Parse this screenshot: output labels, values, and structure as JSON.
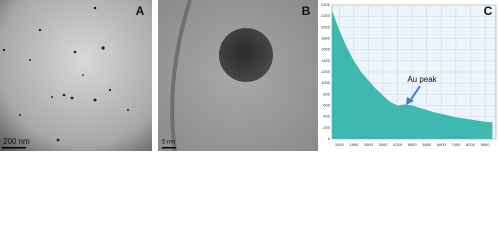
{
  "panels": {
    "a": {
      "label": "A",
      "scale_bar": "200 nm"
    },
    "b": {
      "label": "B",
      "scale_bar": "5 nm"
    }
  },
  "chart_data": {
    "type": "area",
    "label": "C",
    "annotation": "Au peak",
    "color": "#3fb8b0",
    "x": [
      600,
      1000,
      1400,
      1800,
      2200,
      2600,
      3000,
      3400,
      3800,
      4200,
      4600,
      5000,
      5400,
      5800,
      6200,
      6600,
      7000,
      7400,
      7800,
      8200,
      8600,
      9000,
      9400
    ],
    "values": [
      2300,
      1950,
      1650,
      1400,
      1200,
      1050,
      900,
      780,
      660,
      600,
      620,
      600,
      560,
      520,
      480,
      450,
      420,
      390,
      370,
      350,
      330,
      310,
      300
    ],
    "xlim": [
      600,
      9600
    ],
    "ylim": [
      0,
      2400
    ],
    "xticks": [
      1000,
      1800,
      2600,
      3400,
      4200,
      5000,
      5800,
      6600,
      7400,
      8200,
      9000
    ],
    "yticks": [
      0,
      200,
      400,
      600,
      800,
      1000,
      1200,
      1400,
      1600,
      1800,
      2000,
      2200,
      2400
    ],
    "grid": true
  }
}
